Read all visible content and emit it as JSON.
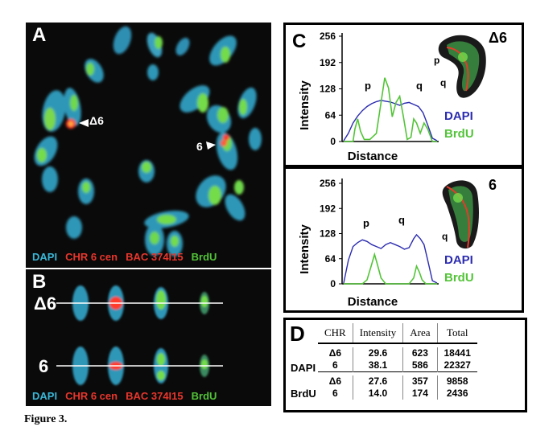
{
  "panel_a": {
    "letter": "A",
    "labels": {
      "delta6": "Δ6",
      "six": "6"
    },
    "legend": {
      "dapi": "DAPI",
      "cen": "CHR 6 cen",
      "bac": "BAC 374I15",
      "brdu": "BrdU"
    }
  },
  "panel_b": {
    "letter": "B",
    "row_labels": [
      "Δ6",
      "6"
    ],
    "legend": {
      "dapi": "DAPI",
      "cen": "CHR 6 cen",
      "bac": "BAC 374I15",
      "brdu": "BrdU"
    }
  },
  "panel_c": {
    "letter": "C",
    "colors": {
      "dapi": "#2b2bb0",
      "brdu": "#53c438"
    },
    "chart_data": [
      {
        "type": "line",
        "title": "Δ6",
        "xlabel": "Distance",
        "ylabel": "Intensity",
        "ylim": [
          0,
          256
        ],
        "yticks": [
          "256",
          "192",
          "128",
          "64",
          "0"
        ],
        "arm_labels": [
          "p",
          "q",
          "p",
          "q"
        ],
        "legend": [
          "DAPI",
          "BrdU"
        ],
        "series": [
          {
            "name": "DAPI",
            "x": [
              0,
              5,
              10,
              15,
              20,
              25,
              30,
              35,
              40,
              45,
              50,
              55,
              60,
              65,
              70,
              75,
              80,
              85,
              90,
              95,
              100
            ],
            "values": [
              2,
              20,
              45,
              62,
              75,
              85,
              92,
              97,
              100,
              98,
              96,
              92,
              88,
              93,
              95,
              90,
              85,
              70,
              40,
              8,
              2
            ]
          },
          {
            "name": "BrdU",
            "x": [
              0,
              5,
              10,
              12,
              15,
              18,
              22,
              28,
              35,
              40,
              44,
              48,
              52,
              56,
              60,
              64,
              68,
              72,
              75,
              78,
              82,
              86,
              90,
              95,
              100
            ],
            "values": [
              0,
              0,
              0,
              30,
              55,
              25,
              5,
              5,
              20,
              95,
              155,
              130,
              60,
              95,
              110,
              60,
              5,
              10,
              55,
              45,
              20,
              45,
              30,
              0,
              0
            ]
          }
        ]
      },
      {
        "type": "line",
        "title": "6",
        "xlabel": "Distance",
        "ylabel": "Intensity",
        "ylim": [
          0,
          256
        ],
        "yticks": [
          "256",
          "192",
          "128",
          "64",
          "0"
        ],
        "arm_labels": [
          "p",
          "q",
          "q"
        ],
        "legend": [
          "DAPI",
          "BrdU"
        ],
        "series": [
          {
            "name": "DAPI",
            "x": [
              0,
              5,
              10,
              15,
              20,
              25,
              30,
              35,
              40,
              45,
              50,
              55,
              60,
              65,
              70,
              75,
              78,
              82,
              86,
              90,
              95,
              100
            ],
            "values": [
              2,
              60,
              95,
              105,
              112,
              108,
              100,
              95,
              90,
              100,
              105,
              100,
              95,
              88,
              92,
              115,
              125,
              115,
              100,
              60,
              8,
              2
            ]
          },
          {
            "name": "BrdU",
            "x": [
              0,
              20,
              25,
              30,
              33,
              36,
              40,
              45,
              50,
              70,
              75,
              78,
              81,
              84,
              88,
              100
            ],
            "values": [
              0,
              0,
              10,
              50,
              75,
              50,
              15,
              0,
              0,
              0,
              15,
              45,
              30,
              10,
              0,
              0
            ]
          }
        ]
      }
    ]
  },
  "panel_d": {
    "letter": "D",
    "headers": [
      "CHR",
      "Intensity",
      "Area",
      "Total"
    ],
    "groups": [
      {
        "label": "DAPI",
        "rows": [
          [
            "Δ6",
            "29.6",
            "623",
            "18441"
          ],
          [
            "6",
            "38.1",
            "586",
            "22327"
          ]
        ]
      },
      {
        "label": "BrdU",
        "rows": [
          [
            "Δ6",
            "27.6",
            "357",
            "9858"
          ],
          [
            "6",
            "14.0",
            "174",
            "2436"
          ]
        ]
      }
    ]
  },
  "caption": "Figure 3."
}
